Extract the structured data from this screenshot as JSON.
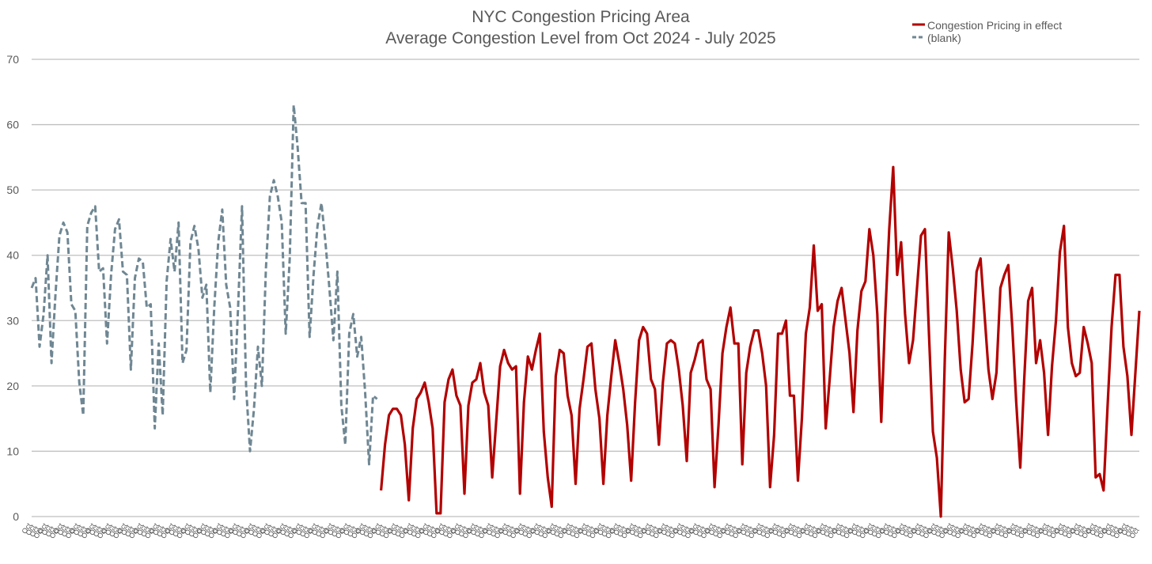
{
  "chart_data": {
    "type": "line",
    "title": [
      "NYC Congestion Pricing Area",
      "Average Congestion Level from Oct 2024 - July 2025"
    ],
    "xlabel": "",
    "ylabel": "",
    "ylim": [
      0,
      70
    ],
    "yticks": [
      "0",
      "10",
      "20",
      "30",
      "40",
      "50",
      "60",
      "70"
    ],
    "grid": true,
    "legend_position": "top-right",
    "series": [
      {
        "name": "(blank)",
        "color": "#6f8793",
        "style": "dashed",
        "values": [
          35,
          36.5,
          26,
          31,
          40,
          23.5,
          34,
          43,
          45,
          43.5,
          32.5,
          31.5,
          20.5,
          15.5,
          44.5,
          46.5,
          47.5,
          37.5,
          38,
          26.5,
          37,
          44,
          45.5,
          37.5,
          37,
          22.5,
          36.5,
          39.5,
          39,
          32,
          32.5,
          13.5,
          26.5,
          15.5,
          36,
          42.5,
          37.5,
          45,
          23.5,
          25.5,
          42,
          44.5,
          41,
          33.5,
          35.5,
          19,
          32,
          42,
          47,
          35.5,
          32,
          18,
          32,
          47.5,
          20,
          10,
          16.5,
          26,
          20,
          38,
          49,
          51.5,
          49,
          45,
          28,
          39.5,
          63,
          56.5,
          48,
          48,
          27.5,
          37,
          44.5,
          48,
          42,
          35,
          27,
          37.5,
          17,
          11,
          28,
          31,
          24.5,
          27.5,
          19,
          8,
          18.5,
          18
        ]
      },
      {
        "name": "Congestion Pricing in effect",
        "color": "#b30000",
        "style": "solid",
        "values": [
          4,
          11,
          15.5,
          16.5,
          16.5,
          15.5,
          11,
          2.5,
          13.5,
          18,
          19,
          20.5,
          17.5,
          13.5,
          0.5,
          0.5,
          17.5,
          21,
          22.5,
          18.5,
          17,
          3.5,
          17,
          20.5,
          21,
          23.5,
          19,
          17,
          6,
          14.5,
          23,
          25.5,
          23.5,
          22.5,
          23,
          3.5,
          17.5,
          24.5,
          22.5,
          25.5,
          28,
          13,
          6,
          1.5,
          21.5,
          25.5,
          25,
          18.5,
          15.5,
          5,
          16.5,
          21,
          26,
          26.5,
          19.5,
          15,
          5,
          15.5,
          21.5,
          27,
          23.5,
          19.5,
          14,
          5.5,
          17.5,
          27,
          29,
          28,
          21,
          19.5,
          11,
          20.5,
          26.5,
          27,
          26.5,
          22.5,
          17,
          8.5,
          22,
          24,
          26.5,
          27,
          21,
          19.5,
          4.5,
          14,
          25,
          29,
          32,
          26.5,
          26.5,
          8,
          22,
          26,
          28.5,
          28.5,
          25,
          20,
          4.5,
          12.5,
          28,
          28,
          30,
          18.5,
          18.5,
          5.5,
          15,
          28,
          32,
          41.5,
          31.5,
          32.5,
          13.5,
          21,
          29,
          33,
          35,
          30,
          25,
          16,
          28.5,
          34.5,
          36,
          44,
          40,
          31,
          14.5,
          31,
          44,
          53.5,
          37,
          42,
          31,
          23.5,
          27,
          35,
          43,
          44,
          28,
          13,
          9,
          0,
          24,
          43.5,
          38,
          31.5,
          22.5,
          17.5,
          18,
          26.5,
          37.5,
          39.5,
          31,
          22.5,
          18,
          22,
          35,
          37,
          38.5,
          29,
          17.5,
          7.5,
          21,
          33,
          35,
          23.5,
          27,
          22,
          12.5,
          23,
          30,
          40.5,
          44.5,
          29,
          23.5,
          21.5,
          22,
          29,
          26.5,
          23.5,
          6,
          6.5,
          4,
          17,
          29,
          37,
          37,
          26,
          21.5,
          12.5,
          22,
          31.5
        ]
      }
    ]
  },
  "xtick_label": "Oct"
}
